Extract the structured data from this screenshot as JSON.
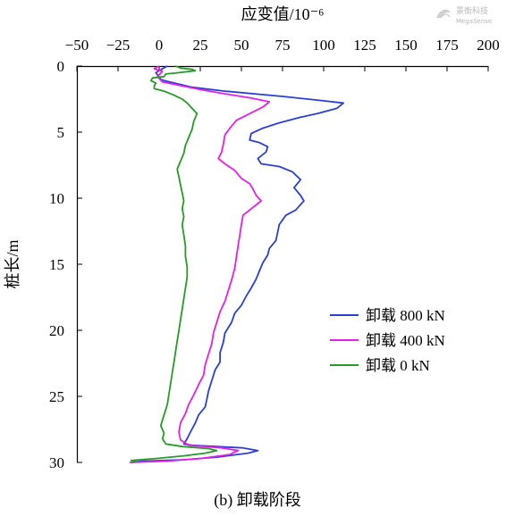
{
  "watermark": {
    "line1": "景衡科技",
    "line2": "MegaSense"
  },
  "caption": "(b)  卸载阶段",
  "chart_data": {
    "type": "line",
    "title": "",
    "xlabel": "应变值/10⁻⁶",
    "ylabel": "桩长/m",
    "x_axis_position": "top",
    "y_axis_inverted": true,
    "xlim": [
      -50,
      200
    ],
    "ylim": [
      0,
      30
    ],
    "xticks": [
      "−50",
      "−25",
      "0",
      "25",
      "50",
      "75",
      "100",
      "125",
      "150",
      "175",
      "200"
    ],
    "yticks": [
      "0",
      "5",
      "10",
      "15",
      "20",
      "25",
      "30"
    ],
    "grid": false,
    "legend_position": "right-middle",
    "series": [
      {
        "name": "卸载 800 kN",
        "color": "#2a3fd6",
        "points": [
          [
            5,
            0.0
          ],
          [
            2,
            0.2
          ],
          [
            -2,
            0.5
          ],
          [
            1,
            1.0
          ],
          [
            3,
            1.1
          ],
          [
            20,
            1.6
          ],
          [
            40,
            1.9
          ],
          [
            75,
            2.3
          ],
          [
            98,
            2.6
          ],
          [
            112,
            2.8
          ],
          [
            108,
            3.2
          ],
          [
            96,
            3.6
          ],
          [
            85,
            3.9
          ],
          [
            73,
            4.3
          ],
          [
            63,
            4.7
          ],
          [
            56,
            5.1
          ],
          [
            55,
            5.6
          ],
          [
            61,
            5.8
          ],
          [
            66,
            6.1
          ],
          [
            65,
            6.5
          ],
          [
            60,
            7.0
          ],
          [
            62,
            7.4
          ],
          [
            73,
            7.6
          ],
          [
            81,
            8.0
          ],
          [
            86,
            8.6
          ],
          [
            82,
            9.2
          ],
          [
            86,
            9.8
          ],
          [
            88,
            10.2
          ],
          [
            83,
            10.9
          ],
          [
            77,
            11.3
          ],
          [
            73,
            12.0
          ],
          [
            72,
            12.6
          ],
          [
            71,
            13.2
          ],
          [
            67,
            13.8
          ],
          [
            66,
            14.3
          ],
          [
            63,
            14.9
          ],
          [
            61,
            15.5
          ],
          [
            59,
            16.1
          ],
          [
            56,
            16.8
          ],
          [
            53,
            17.4
          ],
          [
            50,
            18.1
          ],
          [
            46,
            18.7
          ],
          [
            44,
            19.4
          ],
          [
            40,
            20.2
          ],
          [
            39,
            20.9
          ],
          [
            37,
            21.7
          ],
          [
            37,
            22.4
          ],
          [
            34,
            23.0
          ],
          [
            32,
            23.8
          ],
          [
            30,
            24.6
          ],
          [
            29,
            25.2
          ],
          [
            28,
            25.8
          ],
          [
            24,
            26.4
          ],
          [
            22,
            27.0
          ],
          [
            19,
            27.7
          ],
          [
            17,
            28.2
          ],
          [
            15,
            28.6
          ],
          [
            20,
            28.7
          ],
          [
            35,
            28.8
          ],
          [
            51,
            28.9
          ],
          [
            60,
            29.1
          ],
          [
            54,
            29.3
          ],
          [
            35,
            29.6
          ],
          [
            15,
            29.8
          ],
          [
            -10,
            29.9
          ],
          [
            -17,
            30.0
          ]
        ]
      },
      {
        "name": "卸载 400 kN",
        "color": "#e81ee8",
        "points": [
          [
            0,
            0.0
          ],
          [
            -3,
            0.2
          ],
          [
            2,
            0.4
          ],
          [
            -1,
            0.8
          ],
          [
            2,
            1.2
          ],
          [
            14,
            1.5
          ],
          [
            26,
            1.8
          ],
          [
            40,
            2.1
          ],
          [
            55,
            2.4
          ],
          [
            67,
            2.7
          ],
          [
            63,
            3.1
          ],
          [
            55,
            3.6
          ],
          [
            47,
            4.1
          ],
          [
            43,
            4.7
          ],
          [
            40,
            5.2
          ],
          [
            39,
            5.9
          ],
          [
            38,
            6.5
          ],
          [
            36,
            7.0
          ],
          [
            40,
            7.4
          ],
          [
            46,
            7.9
          ],
          [
            50,
            8.5
          ],
          [
            55,
            8.9
          ],
          [
            57,
            9.3
          ],
          [
            59,
            9.8
          ],
          [
            62,
            10.2
          ],
          [
            56,
            10.8
          ],
          [
            51,
            11.3
          ],
          [
            50,
            12.0
          ],
          [
            49,
            12.8
          ],
          [
            48,
            13.6
          ],
          [
            47,
            14.4
          ],
          [
            46,
            15.3
          ],
          [
            44,
            16.2
          ],
          [
            42,
            17.0
          ],
          [
            40,
            17.8
          ],
          [
            37,
            18.6
          ],
          [
            35,
            19.4
          ],
          [
            33,
            20.2
          ],
          [
            32,
            21.0
          ],
          [
            30,
            21.8
          ],
          [
            28,
            22.6
          ],
          [
            27,
            23.4
          ],
          [
            24,
            24.1
          ],
          [
            21,
            24.9
          ],
          [
            18,
            25.6
          ],
          [
            16,
            26.3
          ],
          [
            13,
            27.0
          ],
          [
            12,
            27.7
          ],
          [
            13,
            28.3
          ],
          [
            18,
            28.7
          ],
          [
            38,
            28.9
          ],
          [
            48,
            29.1
          ],
          [
            43,
            29.4
          ],
          [
            25,
            29.7
          ],
          [
            5,
            29.9
          ],
          [
            -18,
            30.0
          ]
        ]
      },
      {
        "name": "卸载 0 kN",
        "color": "#279b27",
        "points": [
          [
            10,
            0.0
          ],
          [
            13,
            0.15
          ],
          [
            20,
            0.25
          ],
          [
            22,
            0.35
          ],
          [
            12,
            0.5
          ],
          [
            4,
            0.6
          ],
          [
            3,
            0.8
          ],
          [
            -4,
            0.9
          ],
          [
            -5,
            1.1
          ],
          [
            -2,
            1.3
          ],
          [
            -3,
            1.5
          ],
          [
            -3,
            1.7
          ],
          [
            3,
            1.9
          ],
          [
            9,
            2.2
          ],
          [
            14,
            2.5
          ],
          [
            17,
            2.8
          ],
          [
            20,
            3.2
          ],
          [
            23,
            3.6
          ],
          [
            21,
            4.2
          ],
          [
            20,
            4.8
          ],
          [
            18,
            5.4
          ],
          [
            16,
            6.0
          ],
          [
            15,
            6.6
          ],
          [
            13,
            7.2
          ],
          [
            11,
            7.8
          ],
          [
            12,
            8.4
          ],
          [
            13,
            9.0
          ],
          [
            14,
            9.6
          ],
          [
            15,
            10.2
          ],
          [
            14,
            10.8
          ],
          [
            15,
            11.4
          ],
          [
            14,
            12.0
          ],
          [
            15,
            12.8
          ],
          [
            16,
            13.6
          ],
          [
            16,
            14.4
          ],
          [
            17,
            15.2
          ],
          [
            17,
            16.0
          ],
          [
            16,
            16.8
          ],
          [
            15,
            17.6
          ],
          [
            14,
            18.4
          ],
          [
            13,
            19.2
          ],
          [
            12,
            20.0
          ],
          [
            11,
            20.8
          ],
          [
            10,
            21.6
          ],
          [
            9,
            22.4
          ],
          [
            8,
            23.2
          ],
          [
            7,
            24.0
          ],
          [
            6,
            24.8
          ],
          [
            5,
            25.6
          ],
          [
            3,
            26.4
          ],
          [
            1,
            27.2
          ],
          [
            3,
            27.8
          ],
          [
            2,
            28.2
          ],
          [
            4,
            28.6
          ],
          [
            14,
            28.8
          ],
          [
            30,
            28.95
          ],
          [
            35,
            29.1
          ],
          [
            28,
            29.3
          ],
          [
            15,
            29.5
          ],
          [
            -2,
            29.7
          ],
          [
            -17,
            29.85
          ],
          [
            -14,
            29.95
          ],
          [
            -16,
            30.0
          ]
        ]
      }
    ]
  }
}
